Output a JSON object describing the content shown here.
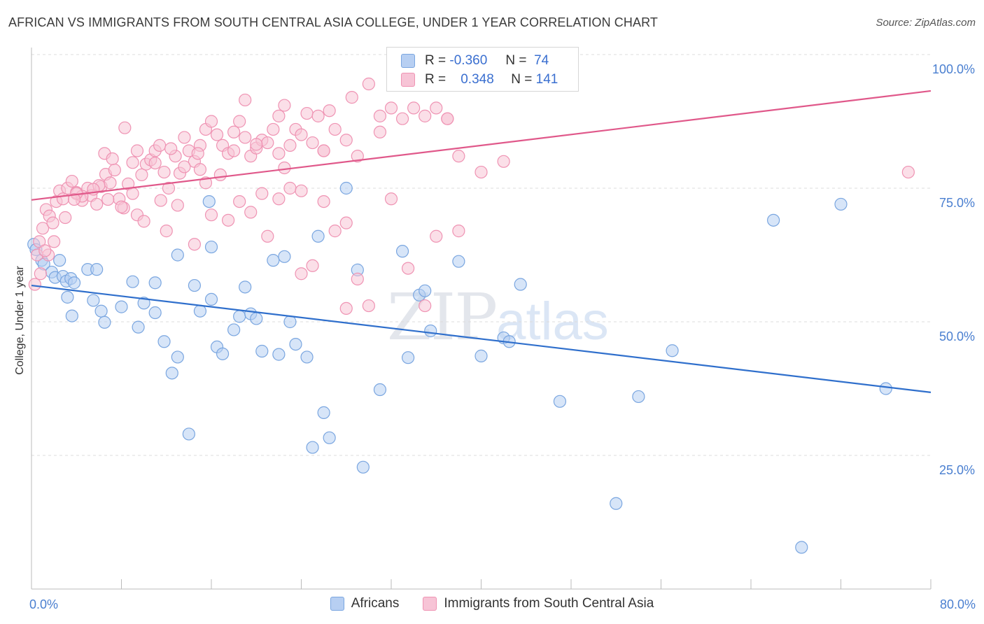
{
  "title": "AFRICAN VS IMMIGRANTS FROM SOUTH CENTRAL ASIA COLLEGE, UNDER 1 YEAR CORRELATION CHART",
  "source": "Source: ZipAtlas.com",
  "watermark": {
    "zip": "ZIP",
    "atlas": "atlas"
  },
  "colors": {
    "blue": "#7aa6e0",
    "blue_fill": "#b7cff2",
    "blue_line": "#2f6fcc",
    "pink": "#ef93b3",
    "pink_fill": "#f7c4d6",
    "pink_line": "#e0588a",
    "tick": "#4a7fd0"
  },
  "legend": {
    "r_label": "R =",
    "n_label": "N =",
    "rows": [
      {
        "r": "-0.360",
        "n": "74"
      },
      {
        "r": "0.348",
        "n": "141"
      }
    ]
  },
  "chart_data": {
    "type": "scatter",
    "ylabel": "College, Under 1 year",
    "xlim": [
      0,
      80
    ],
    "ylim": [
      0,
      100
    ],
    "x_ticks": [
      "0.0%",
      "80.0%"
    ],
    "y_ticks": [
      {
        "value": 25,
        "label": "25.0%"
      },
      {
        "value": 50,
        "label": "50.0%"
      },
      {
        "value": 75,
        "label": "75.0%"
      },
      {
        "value": 100,
        "label": "100.0%"
      }
    ],
    "series": [
      {
        "name": "Africans",
        "color": "#7aa6e0",
        "trend": {
          "x": [
            0,
            80
          ],
          "y": [
            56.8,
            36.8
          ]
        },
        "points": [
          [
            0.2,
            64.5
          ],
          [
            0.4,
            63.5
          ],
          [
            0.9,
            61.5
          ],
          [
            1.1,
            60.8
          ],
          [
            1.8,
            59.3
          ],
          [
            2.1,
            58.3
          ],
          [
            2.8,
            58.5
          ],
          [
            3.1,
            57.6
          ],
          [
            3.5,
            58.1
          ],
          [
            3.8,
            57.3
          ],
          [
            2.5,
            61.5
          ],
          [
            5.0,
            59.8
          ],
          [
            5.8,
            59.8
          ],
          [
            3.2,
            54.6
          ],
          [
            3.6,
            51.1
          ],
          [
            5.5,
            54.0
          ],
          [
            6.2,
            52.0
          ],
          [
            6.5,
            49.9
          ],
          [
            9.0,
            57.5
          ],
          [
            10.0,
            53.5
          ],
          [
            11.0,
            51.7
          ],
          [
            8.0,
            52.8
          ],
          [
            9.5,
            49.0
          ],
          [
            11.8,
            46.3
          ],
          [
            13.0,
            43.4
          ],
          [
            12.5,
            40.4
          ],
          [
            15.0,
            52.0
          ],
          [
            16.0,
            54.2
          ],
          [
            16.5,
            45.3
          ],
          [
            17.0,
            44.0
          ],
          [
            18.0,
            48.5
          ],
          [
            18.5,
            51.0
          ],
          [
            19.0,
            56.5
          ],
          [
            19.5,
            51.5
          ],
          [
            20.0,
            50.6
          ],
          [
            20.5,
            44.5
          ],
          [
            21.5,
            61.5
          ],
          [
            22.0,
            43.9
          ],
          [
            22.5,
            62.2
          ],
          [
            23.0,
            50.0
          ],
          [
            23.5,
            45.8
          ],
          [
            24.5,
            43.4
          ],
          [
            25.5,
            66.0
          ],
          [
            26.0,
            33.0
          ],
          [
            26.5,
            28.3
          ],
          [
            25.0,
            26.5
          ],
          [
            28.0,
            75.0
          ],
          [
            29.0,
            59.7
          ],
          [
            29.5,
            22.8
          ],
          [
            31.0,
            37.3
          ],
          [
            33.0,
            63.2
          ],
          [
            33.5,
            43.3
          ],
          [
            34.5,
            55.0
          ],
          [
            35.0,
            55.8
          ],
          [
            35.5,
            48.3
          ],
          [
            38.0,
            61.3
          ],
          [
            40.0,
            43.6
          ],
          [
            42.0,
            47.0
          ],
          [
            42.5,
            46.3
          ],
          [
            43.5,
            57.0
          ],
          [
            47.0,
            35.1
          ],
          [
            52.0,
            16.0
          ],
          [
            54.0,
            36.0
          ],
          [
            57.0,
            44.6
          ],
          [
            66.0,
            69.0
          ],
          [
            72.0,
            72.0
          ],
          [
            76.0,
            37.5
          ],
          [
            68.5,
            7.8
          ],
          [
            13.0,
            62.5
          ],
          [
            16.0,
            64.0
          ],
          [
            11.0,
            57.3
          ],
          [
            14.5,
            56.8
          ],
          [
            15.8,
            72.5
          ],
          [
            14.0,
            29.0
          ]
        ]
      },
      {
        "name": "Immigrants from South Central Asia",
        "color": "#ef93b3",
        "trend": {
          "x": [
            0,
            80
          ],
          "y": [
            72.8,
            93.2
          ]
        },
        "points": [
          [
            0.3,
            57.0
          ],
          [
            0.5,
            62.5
          ],
          [
            0.7,
            65.0
          ],
          [
            1.0,
            67.5
          ],
          [
            1.3,
            71.0
          ],
          [
            1.6,
            69.8
          ],
          [
            1.9,
            68.5
          ],
          [
            2.2,
            72.5
          ],
          [
            2.5,
            74.5
          ],
          [
            2.8,
            73.0
          ],
          [
            3.2,
            75.0
          ],
          [
            3.6,
            76.3
          ],
          [
            4.0,
            74.2
          ],
          [
            4.5,
            72.7
          ],
          [
            5.0,
            75.0
          ],
          [
            5.3,
            73.6
          ],
          [
            5.8,
            72.0
          ],
          [
            6.2,
            75.3
          ],
          [
            6.6,
            77.6
          ],
          [
            7.0,
            76.0
          ],
          [
            7.4,
            78.4
          ],
          [
            7.8,
            73.0
          ],
          [
            8.2,
            71.3
          ],
          [
            8.6,
            75.8
          ],
          [
            9.0,
            74.0
          ],
          [
            9.4,
            70.0
          ],
          [
            9.8,
            77.5
          ],
          [
            10.2,
            79.5
          ],
          [
            10.6,
            80.3
          ],
          [
            11.0,
            82.0
          ],
          [
            11.4,
            83.0
          ],
          [
            11.8,
            78.0
          ],
          [
            12.2,
            75.0
          ],
          [
            12.8,
            81.0
          ],
          [
            13.2,
            77.8
          ],
          [
            13.6,
            84.5
          ],
          [
            14.0,
            82.0
          ],
          [
            14.5,
            80.0
          ],
          [
            15.0,
            83.0
          ],
          [
            15.5,
            86.0
          ],
          [
            16.0,
            87.5
          ],
          [
            16.5,
            85.0
          ],
          [
            17.0,
            83.0
          ],
          [
            17.5,
            81.5
          ],
          [
            18.0,
            85.5
          ],
          [
            18.5,
            87.5
          ],
          [
            19.0,
            84.5
          ],
          [
            19.5,
            81.0
          ],
          [
            20.0,
            82.5
          ],
          [
            20.5,
            84.0
          ],
          [
            21.0,
            83.5
          ],
          [
            21.5,
            86.0
          ],
          [
            22.0,
            88.5
          ],
          [
            22.5,
            90.5
          ],
          [
            23.0,
            83.0
          ],
          [
            23.5,
            86.0
          ],
          [
            24.0,
            85.0
          ],
          [
            24.5,
            89.0
          ],
          [
            25.0,
            83.5
          ],
          [
            25.5,
            88.5
          ],
          [
            26.0,
            82.0
          ],
          [
            26.5,
            89.5
          ],
          [
            27.0,
            86.0
          ],
          [
            28.0,
            84.0
          ],
          [
            28.5,
            92.0
          ],
          [
            29.0,
            81.0
          ],
          [
            30.0,
            94.5
          ],
          [
            31.0,
            85.5
          ],
          [
            32.0,
            90.0
          ],
          [
            33.0,
            88.0
          ],
          [
            34.0,
            90.0
          ],
          [
            35.0,
            88.5
          ],
          [
            36.0,
            90.0
          ],
          [
            37.0,
            88.0
          ],
          [
            38.0,
            81.0
          ],
          [
            40.0,
            78.0
          ],
          [
            42.0,
            80.0
          ],
          [
            78.0,
            78.0
          ],
          [
            6.5,
            81.5
          ],
          [
            7.2,
            80.5
          ],
          [
            8.3,
            86.3
          ],
          [
            9.4,
            82.0
          ],
          [
            12.4,
            82.4
          ],
          [
            13.6,
            79.0
          ],
          [
            14.8,
            81.5
          ],
          [
            15.5,
            76.0
          ],
          [
            16.8,
            77.5
          ],
          [
            17.5,
            69.0
          ],
          [
            18.5,
            72.5
          ],
          [
            19.5,
            70.5
          ],
          [
            20.5,
            74.0
          ],
          [
            21.0,
            66.0
          ],
          [
            22.0,
            73.0
          ],
          [
            23.0,
            75.0
          ],
          [
            24.0,
            74.5
          ],
          [
            25.0,
            60.5
          ],
          [
            26.0,
            72.5
          ],
          [
            27.0,
            67.0
          ],
          [
            28.0,
            68.5
          ],
          [
            29.0,
            58.0
          ],
          [
            30.0,
            53.0
          ],
          [
            32.0,
            73.0
          ],
          [
            33.5,
            60.0
          ],
          [
            35.0,
            53.0
          ],
          [
            36.0,
            66.0
          ],
          [
            38.0,
            67.0
          ],
          [
            3.0,
            69.5
          ],
          [
            4.5,
            73.5
          ],
          [
            6.0,
            75.5
          ],
          [
            8.0,
            71.5
          ],
          [
            10.0,
            68.8
          ],
          [
            11.5,
            72.7
          ],
          [
            12.0,
            67.0
          ],
          [
            13.0,
            71.8
          ],
          [
            14.5,
            64.5
          ],
          [
            16.0,
            70.0
          ],
          [
            1.5,
            62.5
          ],
          [
            0.8,
            59.0
          ],
          [
            2.0,
            65.0
          ],
          [
            4.0,
            74.0
          ],
          [
            5.5,
            74.8
          ],
          [
            9.0,
            79.8
          ],
          [
            11.0,
            79.7
          ],
          [
            15.0,
            78.5
          ],
          [
            18.0,
            82.0
          ],
          [
            20.0,
            83.2
          ],
          [
            22.5,
            78.8
          ],
          [
            24.0,
            59.0
          ],
          [
            19.0,
            91.5
          ],
          [
            22.0,
            81.5
          ],
          [
            26.0,
            82.0
          ],
          [
            28.0,
            52.5
          ],
          [
            31.0,
            88.5
          ],
          [
            37.0,
            88.0
          ],
          [
            1.2,
            63.3
          ],
          [
            3.8,
            72.9
          ],
          [
            6.8,
            72.9
          ]
        ]
      }
    ]
  }
}
